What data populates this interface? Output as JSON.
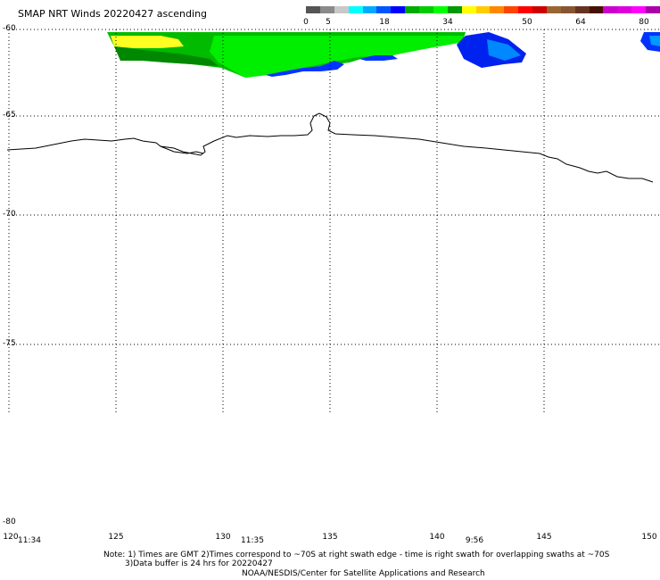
{
  "title": "SMAP NRT Winds 20220427 ascending",
  "colorbar": {
    "labels": [
      "0",
      "5",
      "18",
      "34",
      "50",
      "64",
      "80"
    ],
    "segment_colors": [
      "#555555",
      "#8a8a8a",
      "#c8c8c8",
      "#00ffff",
      "#00aaff",
      "#0055ff",
      "#0000ff",
      "#00aa00",
      "#00cc00",
      "#00ff00",
      "#009900",
      "#ffff00",
      "#ffcc00",
      "#ff8800",
      "#ff4400",
      "#ff0000",
      "#cc0000",
      "#996633",
      "#885533",
      "#663322",
      "#441100",
      "#cc00cc",
      "#dd00dd",
      "#ff00ff",
      "#aa00aa"
    ]
  },
  "map": {
    "lat_labels": [
      "-60",
      "-65",
      "-70",
      "-75",
      "-80"
    ],
    "lon_labels": [
      "120",
      "125",
      "130",
      "135",
      "140",
      "145",
      "150"
    ],
    "swath_times": [
      "11:34",
      "11:35",
      "9:56"
    ],
    "coastline_color": "#000000",
    "grid_style": "dotted"
  },
  "notes": {
    "line1": "Note: 1) Times are GMT 2)Times correspond to ~70S at right swath edge - time is right swath for overlapping swaths at ~70S",
    "line2": "3)Data buffer is 24 hrs for 20220427",
    "line3": "NOAA/NESDIS/Center for Satellite Applications and Research"
  }
}
